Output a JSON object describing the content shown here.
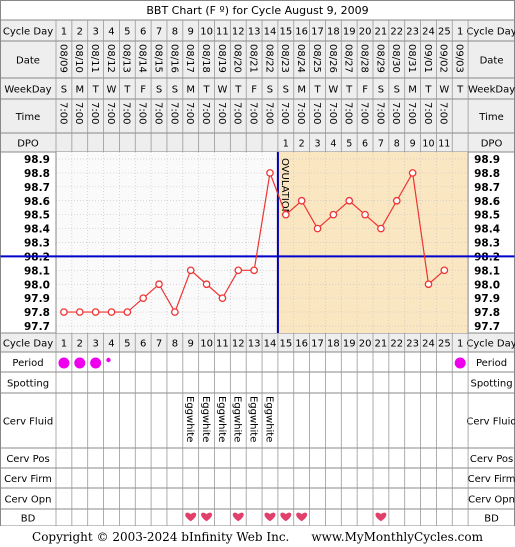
{
  "chart_data": {
    "type": "line",
    "title": "BBT Chart (F º) for Cycle August 9, 2009",
    "row_labels": {
      "cycle_day": "Cycle Day",
      "date": "Date",
      "weekday": "WeekDay",
      "time": "Time",
      "dpo": "DPO",
      "period": "Period",
      "spotting": "Spotting",
      "cerv_fluid": "Cerv Fluid",
      "cerv_pos": "Cerv Pos",
      "cerv_firm": "Cerv Firm",
      "cerv_opn": "Cerv Opn",
      "bd": "BD"
    },
    "cycle_days": [
      "1",
      "2",
      "3",
      "4",
      "5",
      "6",
      "7",
      "8",
      "9",
      "10",
      "11",
      "12",
      "13",
      "14",
      "15",
      "16",
      "17",
      "18",
      "19",
      "20",
      "21",
      "22",
      "23",
      "24",
      "25",
      "1"
    ],
    "dates": [
      "08/09",
      "08/10",
      "08/11",
      "08/12",
      "08/13",
      "08/14",
      "08/15",
      "08/16",
      "08/17",
      "08/18",
      "08/19",
      "08/20",
      "08/21",
      "08/22",
      "08/23",
      "08/24",
      "08/25",
      "08/26",
      "08/27",
      "08/28",
      "08/29",
      "08/30",
      "08/31",
      "09/01",
      "09/02",
      "09/03"
    ],
    "weekdays": [
      "S",
      "M",
      "T",
      "W",
      "T",
      "F",
      "S",
      "S",
      "M",
      "T",
      "W",
      "T",
      "F",
      "S",
      "S",
      "M",
      "T",
      "W",
      "T",
      "F",
      "S",
      "S",
      "M",
      "T",
      "W",
      "T"
    ],
    "times": [
      "7:00",
      "7:00",
      "7:00",
      "7:00",
      "7:00",
      "7:00",
      "7:00",
      "7:00",
      "7:00",
      "7:00",
      "7:00",
      "7:00",
      "7:00",
      "7:00",
      "7:00",
      "7:00",
      "7:00",
      "7:00",
      "7:00",
      "7:00",
      "7:00",
      "7:00",
      "7:00",
      "7:00",
      "7:00",
      ""
    ],
    "dpo": [
      "",
      "",
      "",
      "",
      "",
      "",
      "",
      "",
      "",
      "",
      "",
      "",
      "",
      "",
      "1",
      "2",
      "3",
      "4",
      "5",
      "6",
      "7",
      "8",
      "9",
      "10",
      "11",
      ""
    ],
    "y_ticks": [
      "98.9",
      "98.8",
      "98.7",
      "98.6",
      "98.5",
      "98.4",
      "98.3",
      "98.2",
      "98.1",
      "98.0",
      "97.9",
      "97.8",
      "97.7"
    ],
    "ylim": [
      97.7,
      98.9
    ],
    "temperatures": [
      97.8,
      97.8,
      97.8,
      97.8,
      97.8,
      97.9,
      98.0,
      97.8,
      98.1,
      98.0,
      97.9,
      98.1,
      98.1,
      98.8,
      98.5,
      98.6,
      98.4,
      98.5,
      98.6,
      98.5,
      98.4,
      98.6,
      98.8,
      98.0,
      98.1,
      null
    ],
    "coverline": 98.2,
    "ovulation_label": "OVULATION",
    "ovulation_after_day_index": 13,
    "period": [
      "large",
      "large",
      "large",
      "small",
      "",
      "",
      "",
      "",
      "",
      "",
      "",
      "",
      "",
      "",
      "",
      "",
      "",
      "",
      "",
      "",
      "",
      "",
      "",
      "",
      "",
      "large"
    ],
    "cerv_fluid": [
      "",
      "",
      "",
      "",
      "",
      "",
      "",
      "",
      "Eggwhite",
      "Eggwhite",
      "Eggwhite",
      "Eggwhite",
      "Eggwhite",
      "Eggwhite",
      "",
      "",
      "",
      "",
      "",
      "",
      "",
      "",
      "",
      "",
      "",
      ""
    ],
    "bd": [
      false,
      false,
      false,
      false,
      false,
      false,
      false,
      false,
      true,
      true,
      false,
      true,
      false,
      true,
      true,
      true,
      false,
      false,
      false,
      false,
      true,
      false,
      false,
      false,
      false,
      false
    ],
    "colors": {
      "line": "#ee3333",
      "coverline": "#0000cc",
      "ovulation": "#0000aa",
      "luteal_bg": "#fbe6c2",
      "grid_bg": "#fafafa",
      "header_bg": "#eeeeee",
      "period": "#ee00ee",
      "heart": "#e0406a"
    }
  },
  "footer": {
    "copyright": "Copyright © 2003-2024 bInfinity Web Inc.",
    "site": "www.MyMonthlyCycles.com"
  }
}
